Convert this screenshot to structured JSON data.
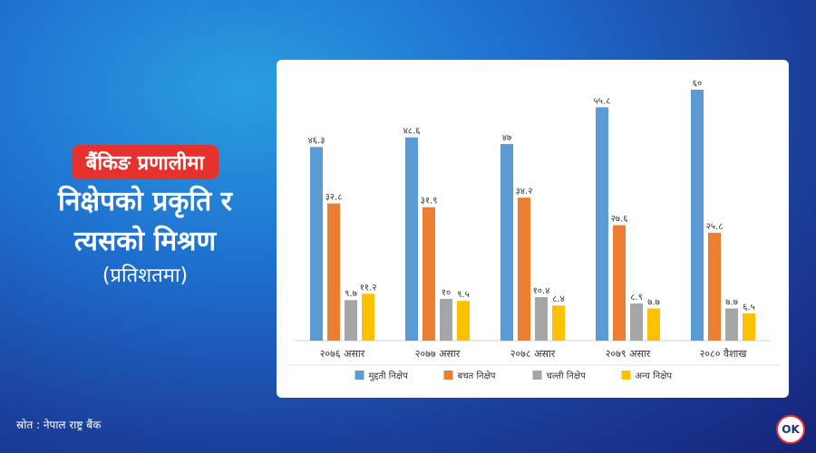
{
  "headline": {
    "badge": "बैंकिङ प्रणालीमा",
    "line1": "निक्षेपको प्रकृति र",
    "line2": "त्यसको मिश्रण",
    "unit": "(प्रतिशतमा)"
  },
  "source": "स्रोत : नेपाल राष्ट्र बैंक",
  "logo_text": "OK",
  "chart_data": {
    "type": "bar",
    "categories": [
      "२०७६ असार",
      "२०७७ असार",
      "२०७८ असार",
      "२०७९ असार",
      "२०८० वैशाख"
    ],
    "ylim": [
      0,
      60
    ],
    "grid": false,
    "legend_position": "bottom",
    "series": [
      {
        "name": "मुद्दती निक्षेप",
        "color": "#5b9bd5",
        "values": [
          46.3,
          48.6,
          47,
          55.8,
          60
        ],
        "labels": [
          "४६.३",
          "४८.६",
          "४७",
          "५५.८",
          "६०"
        ]
      },
      {
        "name": "बचत निक्षेप",
        "color": "#ed7d31",
        "values": [
          32.8,
          31.9,
          34.2,
          27.6,
          25.8
        ],
        "labels": [
          "३२.८",
          "३१.९",
          "३४.२",
          "२७.६",
          "२५.८"
        ]
      },
      {
        "name": "चल्ती निक्षेप",
        "color": "#a5a5a5",
        "values": [
          9.7,
          10,
          10.4,
          8.9,
          7.7
        ],
        "labels": [
          "९.७",
          "१०",
          "१०.४",
          "८.९",
          "७.७"
        ]
      },
      {
        "name": "अन्य निक्षेप",
        "color": "#ffc000",
        "values": [
          11.2,
          9.5,
          8.4,
          7.7,
          6.5
        ],
        "labels": [
          "११.२",
          "९.५",
          "८.४",
          "७.७",
          "६.५"
        ]
      }
    ]
  }
}
